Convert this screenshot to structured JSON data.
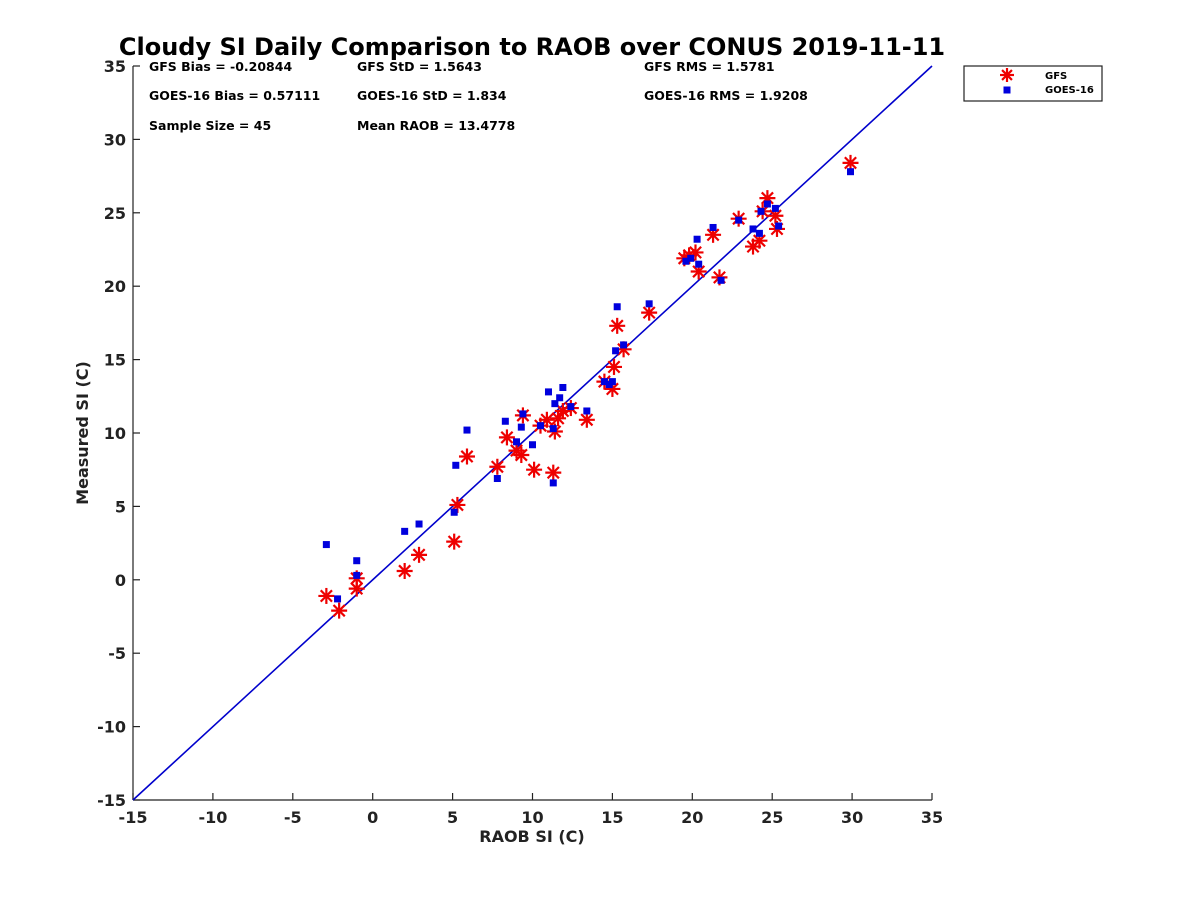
{
  "chart_data": {
    "type": "scatter",
    "title": "Cloudy SI Daily Comparison to RAOB over CONUS 2019-11-11",
    "xlabel": "RAOB SI (C)",
    "ylabel": "Measured SI (C)",
    "xlim": [
      -15,
      35
    ],
    "ylim": [
      -15,
      35
    ],
    "xticks": [
      -15,
      -10,
      -5,
      0,
      5,
      10,
      15,
      20,
      25,
      30,
      35
    ],
    "yticks": [
      -15,
      -10,
      -5,
      0,
      5,
      10,
      15,
      20,
      25,
      30,
      35
    ],
    "grid": false,
    "legend_position": "outside-top-right",
    "stats": [
      "GFS Bias = -0.20844",
      "GFS StD = 1.5643",
      "GFS RMS = 1.5781",
      "GOES-16 Bias = 0.57111",
      "GOES-16 StD = 1.834",
      "GOES-16 RMS = 1.9208",
      "Sample Size = 45",
      "Mean RAOB = 13.4778"
    ],
    "reference_line": {
      "from": [
        -15,
        -15
      ],
      "to": [
        35,
        35
      ],
      "color": "#0000cc"
    },
    "series": [
      {
        "name": "GFS",
        "marker": "asterisk",
        "color": "#ee0000",
        "points": [
          [
            -2.9,
            -1.1
          ],
          [
            -2.1,
            -2.1
          ],
          [
            -1.0,
            0.1
          ],
          [
            -1.0,
            -0.6
          ],
          [
            2.0,
            0.6
          ],
          [
            2.9,
            1.7
          ],
          [
            5.1,
            2.6
          ],
          [
            5.3,
            5.1
          ],
          [
            5.9,
            8.4
          ],
          [
            7.8,
            7.7
          ],
          [
            8.4,
            9.7
          ],
          [
            9.0,
            8.8
          ],
          [
            9.3,
            8.5
          ],
          [
            9.4,
            11.2
          ],
          [
            10.1,
            7.5
          ],
          [
            10.5,
            10.5
          ],
          [
            10.9,
            10.9
          ],
          [
            11.3,
            7.3
          ],
          [
            11.4,
            10.1
          ],
          [
            11.6,
            11.0
          ],
          [
            11.9,
            11.5
          ],
          [
            12.4,
            11.7
          ],
          [
            13.4,
            10.9
          ],
          [
            14.5,
            13.5
          ],
          [
            15.0,
            13.0
          ],
          [
            15.1,
            14.5
          ],
          [
            15.3,
            17.3
          ],
          [
            15.7,
            15.7
          ],
          [
            17.3,
            18.2
          ],
          [
            19.5,
            21.9
          ],
          [
            19.8,
            22.1
          ],
          [
            20.2,
            22.3
          ],
          [
            20.4,
            21.0
          ],
          [
            21.3,
            23.5
          ],
          [
            21.7,
            20.6
          ],
          [
            22.9,
            24.6
          ],
          [
            23.8,
            22.7
          ],
          [
            24.2,
            23.1
          ],
          [
            24.4,
            25.1
          ],
          [
            24.7,
            26.0
          ],
          [
            25.2,
            24.8
          ],
          [
            25.3,
            23.9
          ],
          [
            29.9,
            28.4
          ]
        ]
      },
      {
        "name": "GOES-16",
        "marker": "square",
        "color": "#0000dd",
        "points": [
          [
            -2.9,
            2.4
          ],
          [
            -2.2,
            -1.3
          ],
          [
            -1.0,
            1.3
          ],
          [
            -1.0,
            0.3
          ],
          [
            2.0,
            3.3
          ],
          [
            2.9,
            3.8
          ],
          [
            5.1,
            4.6
          ],
          [
            5.2,
            7.8
          ],
          [
            5.9,
            10.2
          ],
          [
            7.8,
            6.9
          ],
          [
            8.3,
            10.8
          ],
          [
            9.0,
            9.4
          ],
          [
            9.3,
            10.4
          ],
          [
            9.4,
            11.3
          ],
          [
            10.0,
            9.2
          ],
          [
            10.5,
            10.5
          ],
          [
            11.0,
            12.8
          ],
          [
            11.3,
            6.6
          ],
          [
            11.3,
            10.3
          ],
          [
            11.4,
            12.0
          ],
          [
            11.7,
            12.4
          ],
          [
            11.9,
            13.1
          ],
          [
            12.4,
            11.8
          ],
          [
            13.4,
            11.5
          ],
          [
            14.5,
            13.5
          ],
          [
            14.8,
            13.3
          ],
          [
            15.0,
            13.5
          ],
          [
            15.2,
            15.6
          ],
          [
            15.3,
            18.6
          ],
          [
            15.7,
            16.0
          ],
          [
            17.3,
            18.8
          ],
          [
            19.6,
            21.7
          ],
          [
            19.9,
            21.9
          ],
          [
            20.3,
            23.2
          ],
          [
            20.4,
            21.5
          ],
          [
            21.3,
            24.0
          ],
          [
            21.8,
            20.4
          ],
          [
            22.9,
            24.5
          ],
          [
            23.8,
            23.9
          ],
          [
            24.2,
            23.6
          ],
          [
            24.3,
            25.1
          ],
          [
            24.7,
            25.6
          ],
          [
            25.2,
            25.3
          ],
          [
            25.4,
            24.1
          ],
          [
            29.9,
            27.8
          ]
        ]
      }
    ]
  }
}
